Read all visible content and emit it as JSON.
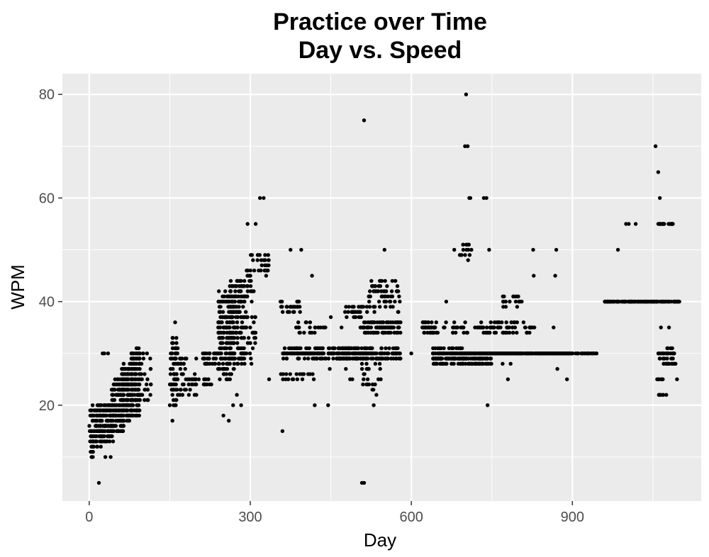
{
  "chart_data": {
    "type": "scatter",
    "title": [
      "Practice over Time",
      "Day vs. Speed"
    ],
    "xlabel": "Day",
    "ylabel": "WPM",
    "xlim": [
      -50,
      1140
    ],
    "ylim": [
      1.5,
      84
    ],
    "x_ticks": [
      0,
      300,
      600,
      900
    ],
    "y_ticks": [
      20,
      40,
      60,
      80
    ],
    "grid": true,
    "colors": {
      "panel": "#ebebeb",
      "grid": "#ffffff",
      "point": "#000000",
      "tick": "#333333"
    },
    "clusters": [
      {
        "d": [
          0,
          10
        ],
        "w": [
          10,
          20
        ],
        "n": 40
      },
      {
        "d": [
          10,
          25
        ],
        "w": [
          12,
          20
        ],
        "n": 60
      },
      {
        "d": [
          20,
          45
        ],
        "w": [
          13,
          20
        ],
        "n": 120
      },
      {
        "d": [
          40,
          65
        ],
        "w": [
          15,
          25
        ],
        "n": 140
      },
      {
        "d": [
          60,
          80
        ],
        "w": [
          17,
          28
        ],
        "n": 150
      },
      {
        "d": [
          78,
          95
        ],
        "w": [
          18,
          31
        ],
        "n": 140
      },
      {
        "d": [
          95,
          115
        ],
        "w": [
          20,
          30
        ],
        "n": 25
      },
      {
        "d": [
          150,
          165
        ],
        "w": [
          20,
          34
        ],
        "n": 70
      },
      {
        "d": [
          165,
          200
        ],
        "w": [
          22,
          30
        ],
        "n": 40
      },
      {
        "d": [
          185,
          230
        ],
        "w": [
          24,
          25
        ],
        "n": 20
      },
      {
        "d": [
          210,
          240
        ],
        "w": [
          28,
          30
        ],
        "n": 25
      },
      {
        "d": [
          240,
          270
        ],
        "w": [
          25,
          42
        ],
        "n": 170
      },
      {
        "d": [
          260,
          290
        ],
        "w": [
          28,
          44
        ],
        "n": 170
      },
      {
        "d": [
          290,
          310
        ],
        "w": [
          28,
          46
        ],
        "n": 50
      },
      {
        "d": [
          300,
          335
        ],
        "w": [
          45,
          50
        ],
        "n": 25
      },
      {
        "d": [
          355,
          395
        ],
        "w": [
          38,
          40
        ],
        "n": 30
      },
      {
        "d": [
          360,
          470
        ],
        "w": [
          29,
          31
        ],
        "n": 160
      },
      {
        "d": [
          355,
          420
        ],
        "w": [
          25,
          26
        ],
        "n": 20
      },
      {
        "d": [
          380,
          440
        ],
        "w": [
          34,
          36
        ],
        "n": 20
      },
      {
        "d": [
          470,
          520
        ],
        "w": [
          29,
          31
        ],
        "n": 120
      },
      {
        "d": [
          475,
          520
        ],
        "w": [
          37,
          39
        ],
        "n": 30
      },
      {
        "d": [
          505,
          580
        ],
        "w": [
          34,
          36
        ],
        "n": 90
      },
      {
        "d": [
          505,
          580
        ],
        "w": [
          29,
          31
        ],
        "n": 90
      },
      {
        "d": [
          520,
          580
        ],
        "w": [
          38,
          44
        ],
        "n": 60
      },
      {
        "d": [
          505,
          545
        ],
        "w": [
          23,
          29
        ],
        "n": 25
      },
      {
        "d": [
          620,
          650
        ],
        "w": [
          34,
          36
        ],
        "n": 40
      },
      {
        "d": [
          640,
          700
        ],
        "w": [
          28,
          31
        ],
        "n": 150
      },
      {
        "d": [
          660,
          760
        ],
        "w": [
          34,
          36
        ],
        "n": 50
      },
      {
        "d": [
          690,
          900
        ],
        "w": [
          29.5,
          30.5
        ],
        "n": 320
      },
      {
        "d": [
          700,
          750
        ],
        "w": [
          28,
          29
        ],
        "n": 60
      },
      {
        "d": [
          760,
          830
        ],
        "w": [
          34,
          36
        ],
        "n": 40
      },
      {
        "d": [
          770,
          810
        ],
        "w": [
          39,
          41
        ],
        "n": 20
      },
      {
        "d": [
          690,
          710
        ],
        "w": [
          48,
          51
        ],
        "n": 12
      },
      {
        "d": [
          900,
          950
        ],
        "w": [
          29.5,
          30.5
        ],
        "n": 25
      },
      {
        "d": [
          960,
          1100
        ],
        "w": [
          39.5,
          40.5
        ],
        "n": 190
      },
      {
        "d": [
          1060,
          1090
        ],
        "w": [
          29,
          31
        ],
        "n": 35
      },
      {
        "d": [
          1070,
          1095
        ],
        "w": [
          27.5,
          28.5
        ],
        "n": 12
      },
      {
        "d": [
          1055,
          1090
        ],
        "w": [
          54.5,
          55.5
        ],
        "n": 20
      },
      {
        "d": [
          1055,
          1070
        ],
        "w": [
          24.5,
          25.5
        ],
        "n": 6
      },
      {
        "d": [
          1060,
          1070
        ],
        "w": [
          21.5,
          22.5
        ],
        "n": 6
      }
    ],
    "points": [
      [
        18,
        5
      ],
      [
        25,
        30
      ],
      [
        28,
        30
      ],
      [
        30,
        10
      ],
      [
        35,
        30
      ],
      [
        40,
        10
      ],
      [
        160,
        36
      ],
      [
        155,
        17
      ],
      [
        250,
        18
      ],
      [
        260,
        17
      ],
      [
        268,
        20
      ],
      [
        283,
        20
      ],
      [
        275,
        22
      ],
      [
        295,
        55
      ],
      [
        305,
        48
      ],
      [
        310,
        55
      ],
      [
        318,
        60
      ],
      [
        325,
        60
      ],
      [
        335,
        25
      ],
      [
        360,
        15
      ],
      [
        375,
        50
      ],
      [
        395,
        50
      ],
      [
        415,
        45
      ],
      [
        420,
        20
      ],
      [
        440,
        35
      ],
      [
        445,
        20
      ],
      [
        448,
        27
      ],
      [
        450,
        37
      ],
      [
        470,
        35
      ],
      [
        478,
        27
      ],
      [
        486,
        25
      ],
      [
        490,
        25
      ],
      [
        508,
        5
      ],
      [
        512,
        5
      ],
      [
        512,
        75
      ],
      [
        530,
        20
      ],
      [
        535,
        22
      ],
      [
        550,
        50
      ],
      [
        560,
        35
      ],
      [
        600,
        30
      ],
      [
        630,
        35
      ],
      [
        665,
        40
      ],
      [
        680,
        50
      ],
      [
        700,
        70
      ],
      [
        702,
        80
      ],
      [
        705,
        70
      ],
      [
        708,
        60
      ],
      [
        710,
        60
      ],
      [
        712,
        50
      ],
      [
        735,
        60
      ],
      [
        740,
        60
      ],
      [
        742,
        20
      ],
      [
        745,
        50
      ],
      [
        770,
        28
      ],
      [
        780,
        25
      ],
      [
        785,
        28
      ],
      [
        827,
        50
      ],
      [
        828,
        45
      ],
      [
        865,
        35
      ],
      [
        868,
        45
      ],
      [
        870,
        50
      ],
      [
        872,
        27
      ],
      [
        890,
        25
      ],
      [
        985,
        50
      ],
      [
        1000,
        55
      ],
      [
        1005,
        55
      ],
      [
        1018,
        55
      ],
      [
        1055,
        70
      ],
      [
        1060,
        65
      ],
      [
        1063,
        60
      ],
      [
        1065,
        35
      ],
      [
        1075,
        22
      ],
      [
        1080,
        35
      ],
      [
        1095,
        25
      ]
    ]
  }
}
